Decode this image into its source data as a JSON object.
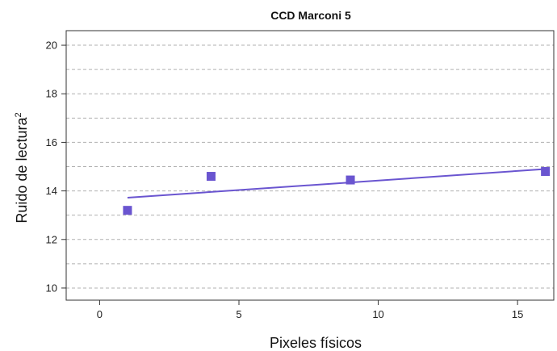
{
  "chart_data": {
    "type": "scatter",
    "title": "CCD Marconi 5",
    "xlabel": "Pixeles físicos",
    "ylabel": "Ruido de lectura",
    "ylabel_superscript": "2",
    "xlim": [
      -1.2,
      16.3
    ],
    "ylim": [
      9.5,
      20.6
    ],
    "xticks": [
      0,
      5,
      10,
      15
    ],
    "yticks": [
      10,
      12,
      14,
      16,
      18,
      20
    ],
    "gridlines_y": [
      10,
      11,
      12,
      13,
      14,
      15,
      16,
      17,
      18,
      19,
      20
    ],
    "grid": "horizontal dashed",
    "color": "#6a55d0",
    "series": [
      {
        "points": [
          {
            "x": 1,
            "y": 13.2
          },
          {
            "x": 4,
            "y": 14.6
          },
          {
            "x": 9,
            "y": 14.45
          },
          {
            "x": 16,
            "y": 14.8
          }
        ]
      }
    ],
    "fit_line": {
      "x": [
        1,
        16
      ],
      "y": [
        13.72,
        14.9
      ]
    }
  }
}
